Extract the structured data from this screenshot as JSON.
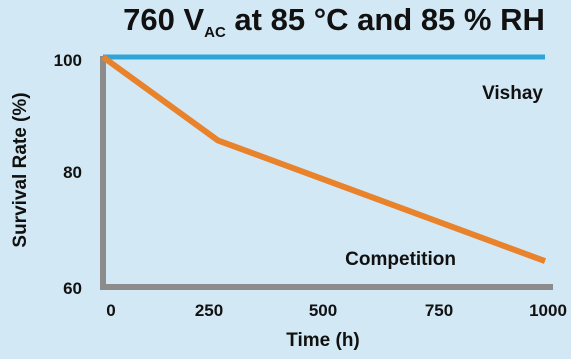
{
  "chart_data": {
    "type": "line",
    "title": {
      "prefix": "760 V",
      "subscript": "AC",
      "suffix": " at 85 °C and 85 % RH"
    },
    "xlabel": "Time (h)",
    "ylabel": "Survival Rate (%)",
    "x_ticks": [
      "0",
      "250",
      "500",
      "750",
      "1000"
    ],
    "y_ticks": [
      "100",
      "80",
      "60"
    ],
    "xlim": [
      0,
      1000
    ],
    "ylim": [
      60,
      100
    ],
    "grid": false,
    "series": [
      {
        "name": "Vishay",
        "color": "#2fa4d6",
        "x": [
          0,
          1000
        ],
        "y": [
          100,
          100
        ]
      },
      {
        "name": "Competition",
        "color": "#e8822b",
        "x": [
          0,
          260,
          1000
        ],
        "y": [
          100,
          85.5,
          64.5
        ]
      }
    ]
  },
  "axis_color": "#8c8c8c"
}
